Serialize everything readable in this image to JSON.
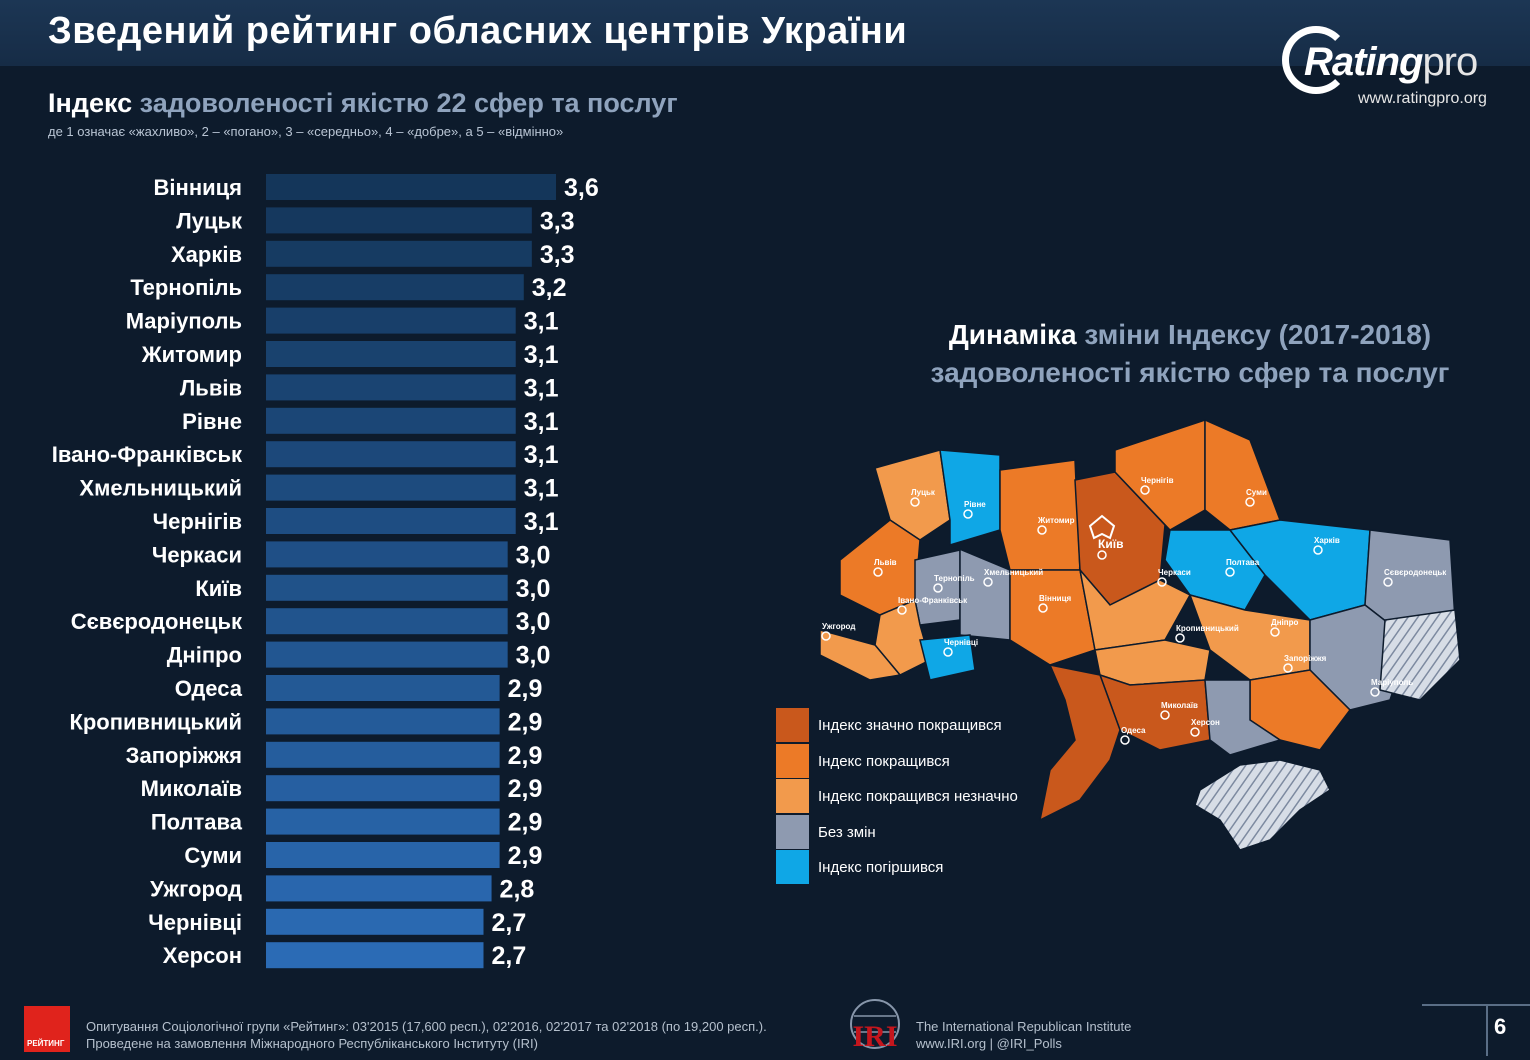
{
  "header": {
    "title": "Зведений рейтинг обласних центрів України"
  },
  "logo": {
    "text_main": "Rating",
    "text_pro": "pro",
    "url": "www.ratingpro.org"
  },
  "subtitle": {
    "bold": "Індекс",
    "light": " задоволеності якістю 22 сфер та послуг",
    "note": "де 1 означає «жахливо», 2 – «погано», 3 – «середньо», 4 – «добре», а 5 – «відмінно»"
  },
  "colors": {
    "bar_top": "#14365a",
    "bar_bottom": "#2b6bb5",
    "dark_orange": "#c9581c",
    "orange": "#ec7a27",
    "light_orange": "#f29a4c",
    "gray": "#8e9ab0",
    "blue": "#0fa7e6"
  },
  "chart_data": {
    "type": "bar",
    "orientation": "horizontal",
    "categories": [
      "Вінниця",
      "Луцьк",
      "Харків",
      "Тернопіль",
      "Маріуполь",
      "Житомир",
      "Львів",
      "Рівне",
      "Івано-Франківськ",
      "Хмельницький",
      "Чернігів",
      "Черкаси",
      "Київ",
      "Сєвєродонецьк",
      "Дніпро",
      "Одеса",
      "Кропивницький",
      "Запоріжжя",
      "Миколаїв",
      "Полтава",
      "Суми",
      "Ужгород",
      "Чернівці",
      "Херсон"
    ],
    "values": [
      3.6,
      3.3,
      3.3,
      3.2,
      3.1,
      3.1,
      3.1,
      3.1,
      3.1,
      3.1,
      3.1,
      3.0,
      3.0,
      3.0,
      3.0,
      2.9,
      2.9,
      2.9,
      2.9,
      2.9,
      2.9,
      2.8,
      2.7,
      2.7
    ],
    "value_labels": [
      "3,6",
      "3,3",
      "3,3",
      "3,2",
      "3,1",
      "3,1",
      "3,1",
      "3,1",
      "3,1",
      "3,1",
      "3,1",
      "3,0",
      "3,0",
      "3,0",
      "3,0",
      "2,9",
      "2,9",
      "2,9",
      "2,9",
      "2,9",
      "2,9",
      "2,8",
      "2,7",
      "2,7"
    ],
    "xlim": [
      0,
      3.6
    ]
  },
  "map": {
    "title_bold": "Динаміка",
    "title_light": " зміни Індексу (2017-2018)",
    "title_line2": "задоволеності якістю сфер та послуг",
    "city_labels": [
      "Луцьк",
      "Рівне",
      "Житомир",
      "Київ",
      "Чернігів",
      "Суми",
      "Харків",
      "Полтава",
      "Сєвєродонецьк",
      "Львів",
      "Тернопіль",
      "Хмельницький",
      "Вінниця",
      "Черкаси",
      "Івано-Франківськ",
      "Ужгород",
      "Чернівці",
      "Кропивницький",
      "Дніпро",
      "Запоріжжя",
      "Маріуполь",
      "Миколаїв",
      "Одеса",
      "Херсон"
    ]
  },
  "legend": [
    {
      "label": "Індекс значно покращився",
      "color": "#c9581c"
    },
    {
      "label": "Індекс покращився",
      "color": "#ec7a27"
    },
    {
      "label": "Індекс покращився незначно",
      "color": "#f29a4c"
    },
    {
      "label": "Без змін",
      "color": "#8e9ab0"
    },
    {
      "label": "Індекс погіршився",
      "color": "#0fa7e6"
    }
  ],
  "footer": {
    "logo_text": "РЕЙТИНГ",
    "line1": "Опитування Соціологічної групи «Рейтинг»: 03'2015 (17,600 респ.), 02'2016, 02'2017 та 02'2018 (по 19,200 респ.).",
    "line2": "Проведене на замовлення Міжнародного Республіканського Інституту (IRI)",
    "iri_mark": "IRI",
    "iri_line1": "The International Republican Institute",
    "iri_line2": "www.IRI.org | @IRI_Polls",
    "page": "6"
  }
}
